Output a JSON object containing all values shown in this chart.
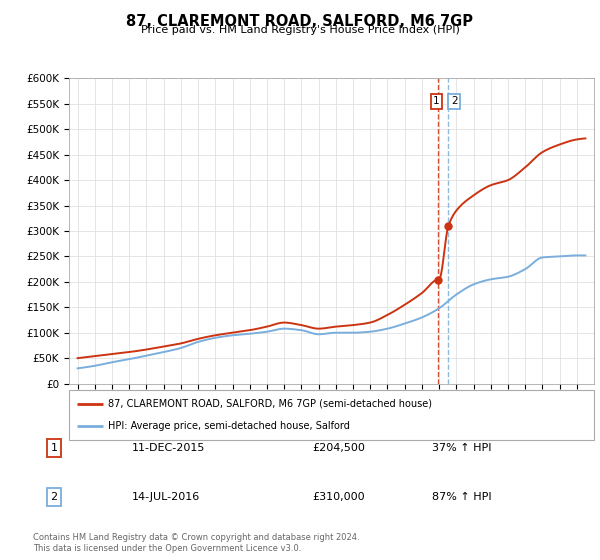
{
  "title": "87, CLAREMONT ROAD, SALFORD, M6 7GP",
  "subtitle": "Price paid vs. HM Land Registry's House Price Index (HPI)",
  "ylim": [
    0,
    600000
  ],
  "yticks": [
    0,
    50000,
    100000,
    150000,
    200000,
    250000,
    300000,
    350000,
    400000,
    450000,
    500000,
    550000,
    600000
  ],
  "hpi_color": "#7aaedc",
  "price_color": "#cc3311",
  "vline1_color": "#cc3311",
  "vline2_color": "#7aaedc",
  "marker1_year": 2015.95,
  "marker1_price": 204500,
  "marker2_year": 2016.54,
  "marker2_price": 310000,
  "legend_label1": "87, CLAREMONT ROAD, SALFORD, M6 7GP (semi-detached house)",
  "legend_label2": "HPI: Average price, semi-detached house, Salford",
  "transaction1_date": "11-DEC-2015",
  "transaction1_price": "£204,500",
  "transaction1_hpi": "37% ↑ HPI",
  "transaction2_date": "14-JUL-2016",
  "transaction2_price": "£310,000",
  "transaction2_hpi": "87% ↑ HPI",
  "footer": "Contains HM Land Registry data © Crown copyright and database right 2024.\nThis data is licensed under the Open Government Licence v3.0.",
  "xmin": 1994.5,
  "xmax": 2025.0
}
